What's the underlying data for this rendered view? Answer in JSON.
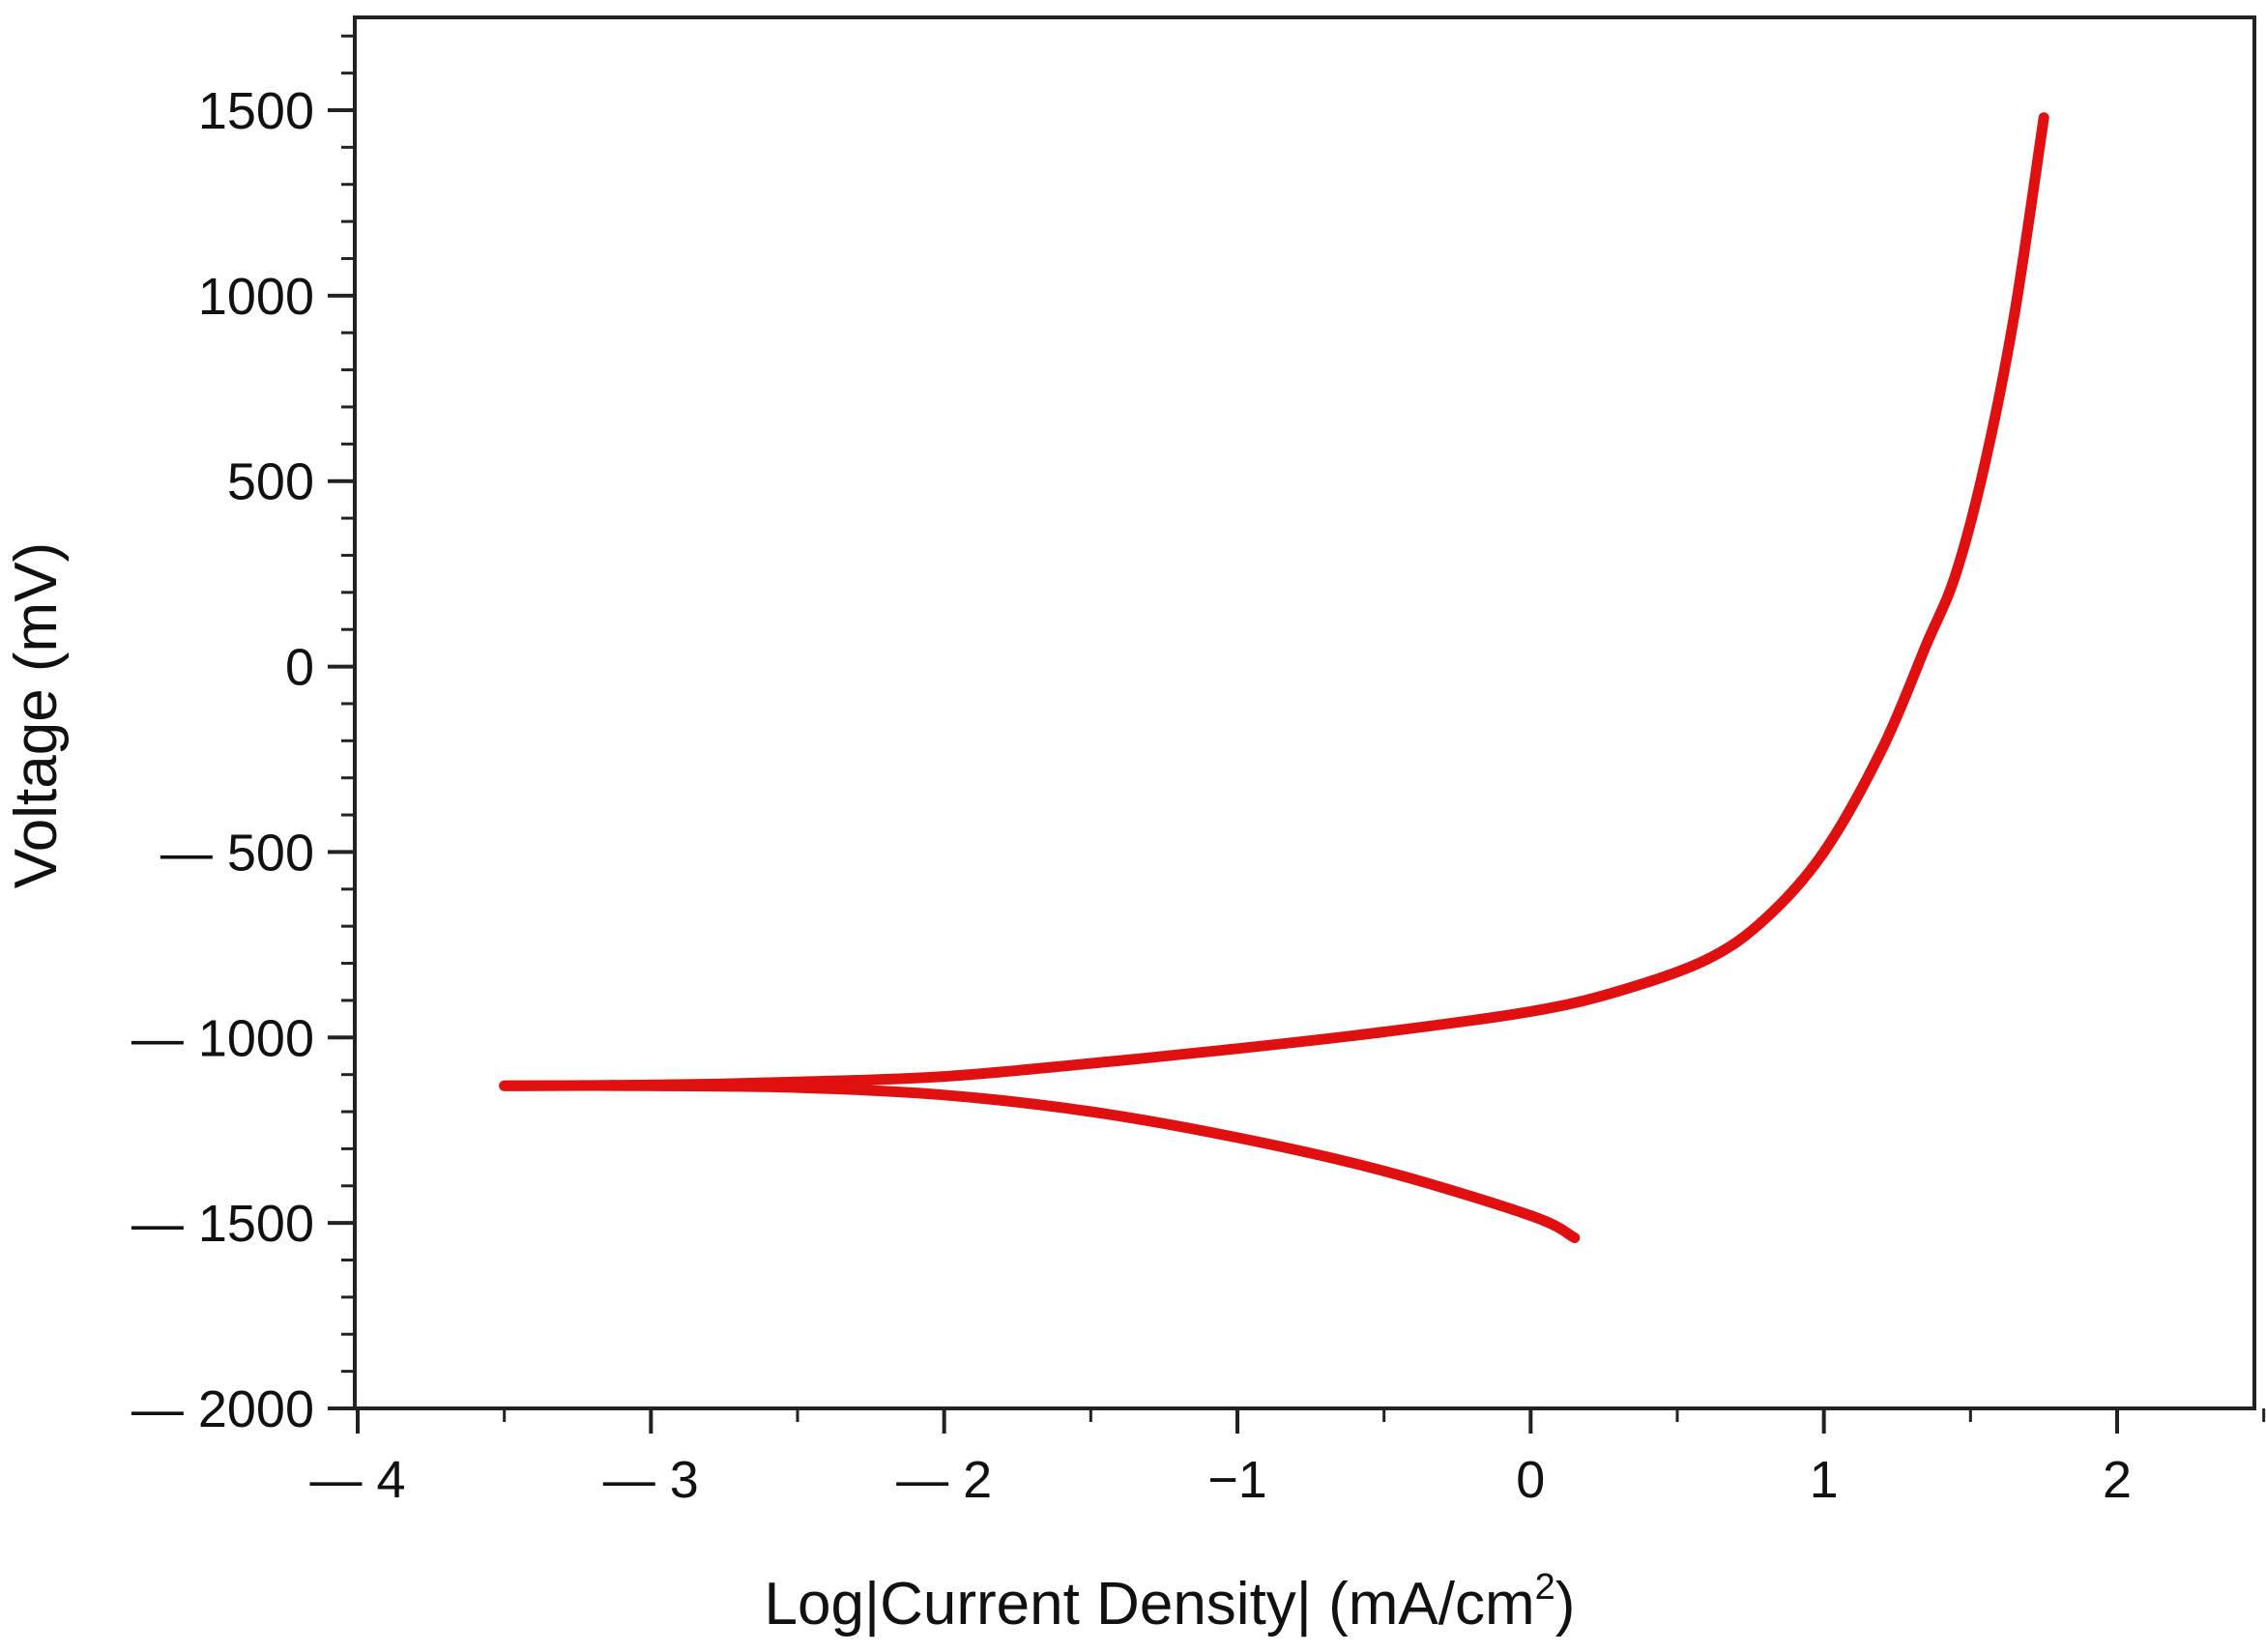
{
  "chart_data": {
    "type": "line",
    "title": "",
    "xlabel": "Log|Current Density| (mA/cm",
    "xlabel_superscript": "2",
    "xlabel_suffix": ")",
    "ylabel": "Voltage (mV)",
    "xlim": [
      -4,
      2.5
    ],
    "ylim": [
      -2000,
      1750
    ],
    "x_ticks": [
      -4,
      -3,
      -2,
      -1,
      0,
      1,
      2
    ],
    "x_tick_labels": [
      "— 4",
      "— 3",
      "— 2",
      "−1",
      "0",
      "1",
      "2"
    ],
    "y_ticks": [
      -2000,
      -1500,
      -1000,
      -500,
      0,
      500,
      1000,
      1500
    ],
    "y_tick_labels": [
      "— 2000",
      "— 1500",
      "— 1000",
      "— 500",
      "0",
      "500",
      "1000",
      "1500"
    ],
    "grid": false,
    "legend": "none",
    "series": [
      {
        "color": "#e01010",
        "x": [
          -3.5,
          -3.0,
          -2.5,
          -2.0,
          -1.5,
          -1.0,
          -0.5,
          0.0,
          0.3,
          0.6,
          0.8,
          1.0,
          1.2,
          1.35,
          1.45,
          1.55,
          1.65,
          1.75
        ],
        "y": [
          -1130,
          -1128,
          -1120,
          -1105,
          -1070,
          -1030,
          -985,
          -930,
          -875,
          -790,
          -680,
          -500,
          -220,
          60,
          250,
          550,
          950,
          1480
        ]
      },
      {
        "color": "#e01010",
        "x": [
          -3.5,
          -3.0,
          -2.5,
          -2.0,
          -1.5,
          -1.0,
          -0.5,
          0.0,
          0.15
        ],
        "y": [
          -1130,
          -1130,
          -1135,
          -1155,
          -1200,
          -1270,
          -1360,
          -1480,
          -1540
        ]
      }
    ]
  }
}
